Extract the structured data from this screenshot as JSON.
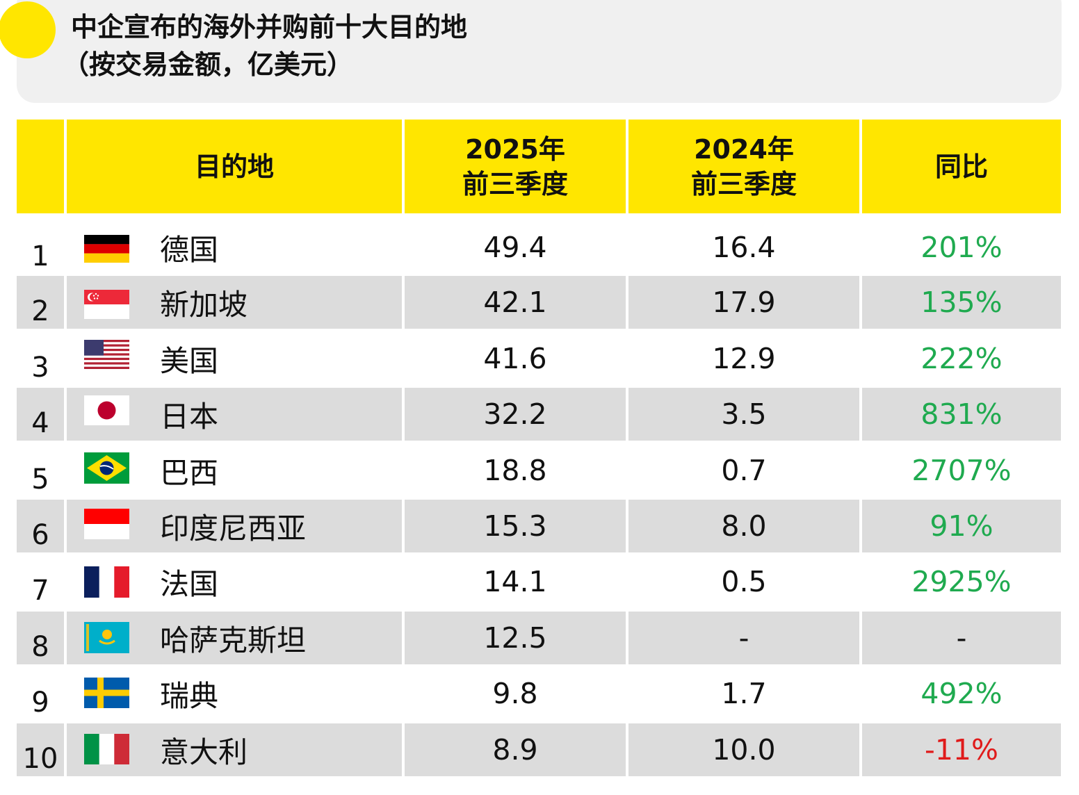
{
  "title": {
    "line1": "中企宣布的海外并购前十大目的地",
    "line2": "（按交易金额，亿美元）"
  },
  "header": {
    "rank": "",
    "destination": "目的地",
    "col2025_line1": "2025年",
    "col2025_line2": "前三季度",
    "col2024_line1": "2024年",
    "col2024_line2": "前三季度",
    "yoy": "同比"
  },
  "colors": {
    "accent_yellow": "#ffe600",
    "stripe_gray": "#dcdcdc",
    "positive_green": "#1faa4f",
    "negative_red": "#e01b1b"
  },
  "rows": [
    {
      "rank": "1",
      "flag": "germany-flag-icon",
      "name": "德国",
      "v2025": "49.4",
      "v2024": "16.4",
      "yoy": "201%"
    },
    {
      "rank": "2",
      "flag": "singapore-flag-icon",
      "name": "新加坡",
      "v2025": "42.1",
      "v2024": "17.9",
      "yoy": "135%"
    },
    {
      "rank": "3",
      "flag": "usa-flag-icon",
      "name": "美国",
      "v2025": "41.6",
      "v2024": "12.9",
      "yoy": "222%"
    },
    {
      "rank": "4",
      "flag": "japan-flag-icon",
      "name": "日本",
      "v2025": "32.2",
      "v2024": "3.5",
      "yoy": "831%"
    },
    {
      "rank": "5",
      "flag": "brazil-flag-icon",
      "name": "巴西",
      "v2025": "18.8",
      "v2024": "0.7",
      "yoy": "2707%"
    },
    {
      "rank": "6",
      "flag": "indonesia-flag-icon",
      "name": "印度尼西亚",
      "v2025": "15.3",
      "v2024": "8.0",
      "yoy": "91%"
    },
    {
      "rank": "7",
      "flag": "france-flag-icon",
      "name": "法国",
      "v2025": "14.1",
      "v2024": "0.5",
      "yoy": "2925%"
    },
    {
      "rank": "8",
      "flag": "kazakhstan-flag-icon",
      "name": "哈萨克斯坦",
      "v2025": "12.5",
      "v2024": "-",
      "yoy": "-"
    },
    {
      "rank": "9",
      "flag": "sweden-flag-icon",
      "name": "瑞典",
      "v2025": "9.8",
      "v2024": "1.7",
      "yoy": "492%"
    },
    {
      "rank": "10",
      "flag": "italy-flag-icon",
      "name": "意大利",
      "v2025": "8.9",
      "v2024": "10.0",
      "yoy": "-11%"
    }
  ]
}
